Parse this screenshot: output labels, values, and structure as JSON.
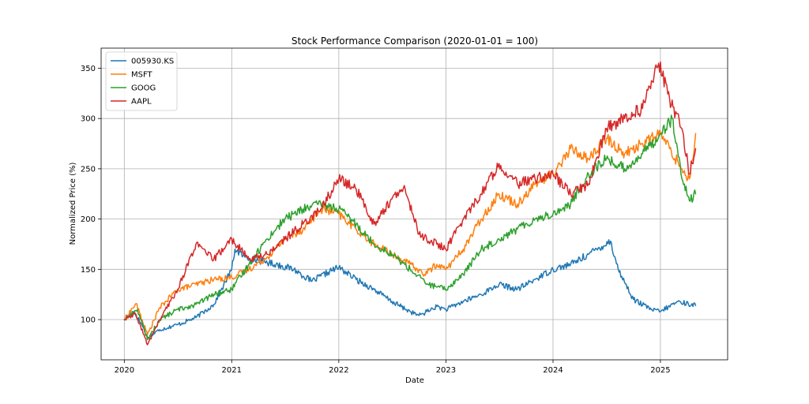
{
  "chart_data": {
    "type": "line",
    "title": "Stock Performance Comparison (2020-01-01 = 100)",
    "xlabel": "Date",
    "ylabel": "Normalized Price (%)",
    "xlim": [
      "2019-10-14",
      "2025-08-18"
    ],
    "ylim": [
      60,
      370
    ],
    "x_ticks": [
      "2020",
      "2021",
      "2022",
      "2023",
      "2024",
      "2025"
    ],
    "x_tick_dates": [
      "2020-01-01",
      "2021-01-01",
      "2022-01-01",
      "2023-01-01",
      "2024-01-01",
      "2025-01-01"
    ],
    "y_ticks": [
      100,
      150,
      200,
      250,
      300,
      350
    ],
    "grid": true,
    "legend_position": "top-left",
    "series": [
      {
        "name": "005930.KS",
        "color": "#1f77b4",
        "points": [
          [
            "2020-01-01",
            100
          ],
          [
            "2020-02-01",
            108
          ],
          [
            "2020-03-01",
            95
          ],
          [
            "2020-03-20",
            82
          ],
          [
            "2020-05-01",
            90
          ],
          [
            "2020-07-01",
            95
          ],
          [
            "2020-09-01",
            102
          ],
          [
            "2020-11-01",
            115
          ],
          [
            "2021-01-01",
            150
          ],
          [
            "2021-01-12",
            170
          ],
          [
            "2021-02-15",
            162
          ],
          [
            "2021-04-15",
            158
          ],
          [
            "2021-06-01",
            155
          ],
          [
            "2021-08-01",
            150
          ],
          [
            "2021-10-01",
            138
          ],
          [
            "2021-12-01",
            148
          ],
          [
            "2022-01-01",
            152
          ],
          [
            "2022-03-01",
            140
          ],
          [
            "2022-05-01",
            130
          ],
          [
            "2022-07-01",
            118
          ],
          [
            "2022-09-01",
            108
          ],
          [
            "2022-10-01",
            104
          ],
          [
            "2022-12-01",
            113
          ],
          [
            "2023-01-01",
            110
          ],
          [
            "2023-03-01",
            118
          ],
          [
            "2023-05-01",
            125
          ],
          [
            "2023-07-01",
            135
          ],
          [
            "2023-09-01",
            130
          ],
          [
            "2023-11-01",
            140
          ],
          [
            "2024-01-01",
            150
          ],
          [
            "2024-03-01",
            155
          ],
          [
            "2024-05-01",
            165
          ],
          [
            "2024-07-15",
            178
          ],
          [
            "2024-08-10",
            150
          ],
          [
            "2024-10-01",
            120
          ],
          [
            "2024-12-01",
            110
          ],
          [
            "2025-01-01",
            108
          ],
          [
            "2025-03-01",
            118
          ],
          [
            "2025-05-01",
            114
          ]
        ]
      },
      {
        "name": "MSFT",
        "color": "#ff7f0e",
        "points": [
          [
            "2020-01-01",
            100
          ],
          [
            "2020-02-10",
            116
          ],
          [
            "2020-03-20",
            85
          ],
          [
            "2020-05-01",
            112
          ],
          [
            "2020-07-01",
            130
          ],
          [
            "2020-09-01",
            135
          ],
          [
            "2020-11-01",
            140
          ],
          [
            "2021-01-01",
            142
          ],
          [
            "2021-03-01",
            150
          ],
          [
            "2021-05-01",
            162
          ],
          [
            "2021-07-01",
            180
          ],
          [
            "2021-09-01",
            190
          ],
          [
            "2021-11-01",
            210
          ],
          [
            "2022-01-01",
            205
          ],
          [
            "2022-03-01",
            190
          ],
          [
            "2022-05-01",
            175
          ],
          [
            "2022-07-01",
            165
          ],
          [
            "2022-09-01",
            155
          ],
          [
            "2022-10-20",
            145
          ],
          [
            "2022-12-01",
            155
          ],
          [
            "2023-01-01",
            150
          ],
          [
            "2023-03-01",
            170
          ],
          [
            "2023-05-01",
            200
          ],
          [
            "2023-07-01",
            225
          ],
          [
            "2023-09-01",
            215
          ],
          [
            "2023-11-01",
            235
          ],
          [
            "2024-01-01",
            245
          ],
          [
            "2024-03-01",
            270
          ],
          [
            "2024-05-01",
            260
          ],
          [
            "2024-07-01",
            280
          ],
          [
            "2024-09-01",
            265
          ],
          [
            "2024-11-01",
            275
          ],
          [
            "2025-01-01",
            285
          ],
          [
            "2025-02-01",
            270
          ],
          [
            "2025-03-15",
            250
          ],
          [
            "2025-04-10",
            240
          ],
          [
            "2025-05-01",
            285
          ]
        ]
      },
      {
        "name": "GOOG",
        "color": "#2ca02c",
        "points": [
          [
            "2020-01-01",
            100
          ],
          [
            "2020-02-15",
            110
          ],
          [
            "2020-03-20",
            80
          ],
          [
            "2020-05-01",
            100
          ],
          [
            "2020-07-01",
            110
          ],
          [
            "2020-09-01",
            115
          ],
          [
            "2020-11-01",
            125
          ],
          [
            "2021-01-01",
            130
          ],
          [
            "2021-03-01",
            155
          ],
          [
            "2021-05-01",
            180
          ],
          [
            "2021-07-01",
            200
          ],
          [
            "2021-09-01",
            210
          ],
          [
            "2021-11-01",
            215
          ],
          [
            "2022-01-01",
            210
          ],
          [
            "2022-03-01",
            195
          ],
          [
            "2022-05-01",
            175
          ],
          [
            "2022-07-01",
            165
          ],
          [
            "2022-09-01",
            150
          ],
          [
            "2022-11-01",
            135
          ],
          [
            "2023-01-01",
            130
          ],
          [
            "2023-03-01",
            145
          ],
          [
            "2023-05-01",
            170
          ],
          [
            "2023-07-01",
            180
          ],
          [
            "2023-09-01",
            190
          ],
          [
            "2023-11-01",
            200
          ],
          [
            "2024-01-01",
            205
          ],
          [
            "2024-03-01",
            215
          ],
          [
            "2024-05-01",
            245
          ],
          [
            "2024-07-01",
            260
          ],
          [
            "2024-09-01",
            250
          ],
          [
            "2024-11-01",
            265
          ],
          [
            "2025-01-01",
            285
          ],
          [
            "2025-02-10",
            300
          ],
          [
            "2025-03-15",
            240
          ],
          [
            "2025-04-10",
            218
          ],
          [
            "2025-05-01",
            225
          ]
        ]
      },
      {
        "name": "AAPL",
        "color": "#d62728",
        "points": [
          [
            "2020-01-01",
            100
          ],
          [
            "2020-02-10",
            105
          ],
          [
            "2020-03-20",
            75
          ],
          [
            "2020-05-01",
            100
          ],
          [
            "2020-07-01",
            130
          ],
          [
            "2020-09-01",
            175
          ],
          [
            "2020-11-01",
            160
          ],
          [
            "2021-01-01",
            180
          ],
          [
            "2021-03-01",
            160
          ],
          [
            "2021-05-01",
            165
          ],
          [
            "2021-07-01",
            180
          ],
          [
            "2021-09-01",
            195
          ],
          [
            "2021-11-01",
            210
          ],
          [
            "2022-01-01",
            240
          ],
          [
            "2022-03-01",
            230
          ],
          [
            "2022-05-01",
            195
          ],
          [
            "2022-07-01",
            220
          ],
          [
            "2022-08-15",
            230
          ],
          [
            "2022-10-01",
            185
          ],
          [
            "2022-12-01",
            175
          ],
          [
            "2023-01-01",
            170
          ],
          [
            "2023-03-01",
            200
          ],
          [
            "2023-05-01",
            225
          ],
          [
            "2023-07-01",
            255
          ],
          [
            "2023-09-01",
            235
          ],
          [
            "2023-11-01",
            240
          ],
          [
            "2024-01-01",
            245
          ],
          [
            "2024-03-01",
            225
          ],
          [
            "2024-05-01",
            235
          ],
          [
            "2024-07-01",
            290
          ],
          [
            "2024-09-01",
            300
          ],
          [
            "2024-11-01",
            310
          ],
          [
            "2024-12-26",
            355
          ],
          [
            "2025-02-01",
            320
          ],
          [
            "2025-03-15",
            290
          ],
          [
            "2025-04-10",
            245
          ],
          [
            "2025-05-01",
            270
          ]
        ]
      }
    ]
  }
}
